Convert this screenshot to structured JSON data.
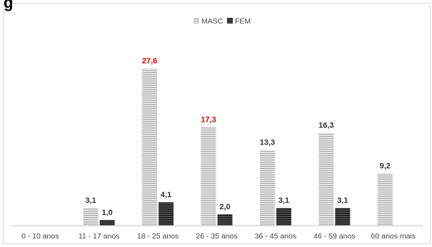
{
  "page": {
    "clipped_heading": "g"
  },
  "chart_data": {
    "type": "bar",
    "categories": [
      "0 - 10 anos",
      "11 - 17 anos",
      "18 - 25 anos",
      "26 - 35 anos",
      "36 - 45 anos",
      "46 - 59 anos",
      "60 anos mais"
    ],
    "series": [
      {
        "name": "MASC",
        "values": [
          null,
          3.1,
          27.6,
          17.3,
          13.3,
          16.3,
          9.2
        ],
        "labels": [
          "",
          "3,1",
          "27,6",
          "17,3",
          "13,3",
          "16,3",
          "9,2"
        ]
      },
      {
        "name": "FEM",
        "values": [
          null,
          1.0,
          4.1,
          2.0,
          3.1,
          3.1,
          null
        ],
        "labels": [
          "",
          "1,0",
          "4,1",
          "2,0",
          "3,1",
          "3,1",
          ""
        ]
      }
    ],
    "highlight_labels": [
      "27,6",
      "17,3"
    ],
    "ylim": [
      0,
      30
    ],
    "legend": "top-center",
    "grid": false,
    "colors": {
      "masc": "#c8c8c8",
      "fem": "#2b2b2b",
      "highlight": "#e00000",
      "label": "#333333"
    }
  }
}
